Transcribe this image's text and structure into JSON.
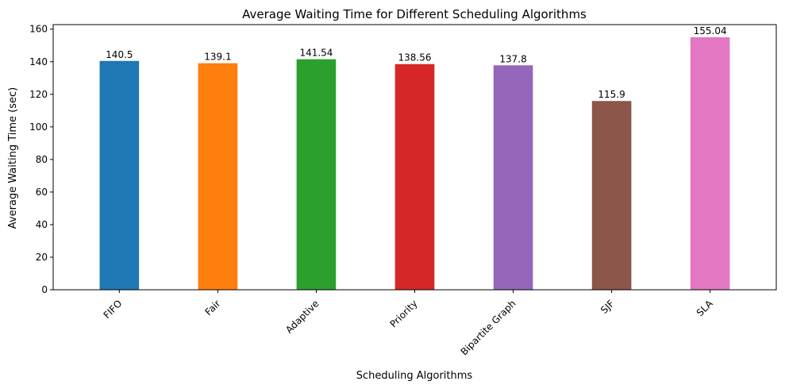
{
  "chart_data": {
    "type": "bar",
    "title": "Average Waiting Time for Different Scheduling Algorithms",
    "xlabel": "Scheduling Algorithms",
    "ylabel": "Average Waiting Time (sec)",
    "ylim": [
      0,
      162.8
    ],
    "yticks": [
      0,
      20,
      40,
      60,
      80,
      100,
      120,
      140,
      160
    ],
    "grid": false,
    "x_tick_rotation_deg": 45,
    "categories": [
      "FIFO",
      "Fair",
      "Adaptive",
      "Priority",
      "Bipartite Graph",
      "SJF",
      "SLA"
    ],
    "values": [
      140.5,
      139.1,
      141.54,
      138.56,
      137.8,
      115.9,
      155.04
    ],
    "value_labels": [
      "140.5",
      "139.1",
      "141.54",
      "138.56",
      "137.8",
      "115.9",
      "155.04"
    ],
    "colors": [
      "#1f77b4",
      "#ff7f0e",
      "#2ca02c",
      "#d62728",
      "#9467bd",
      "#8c564b",
      "#e377c2"
    ]
  }
}
